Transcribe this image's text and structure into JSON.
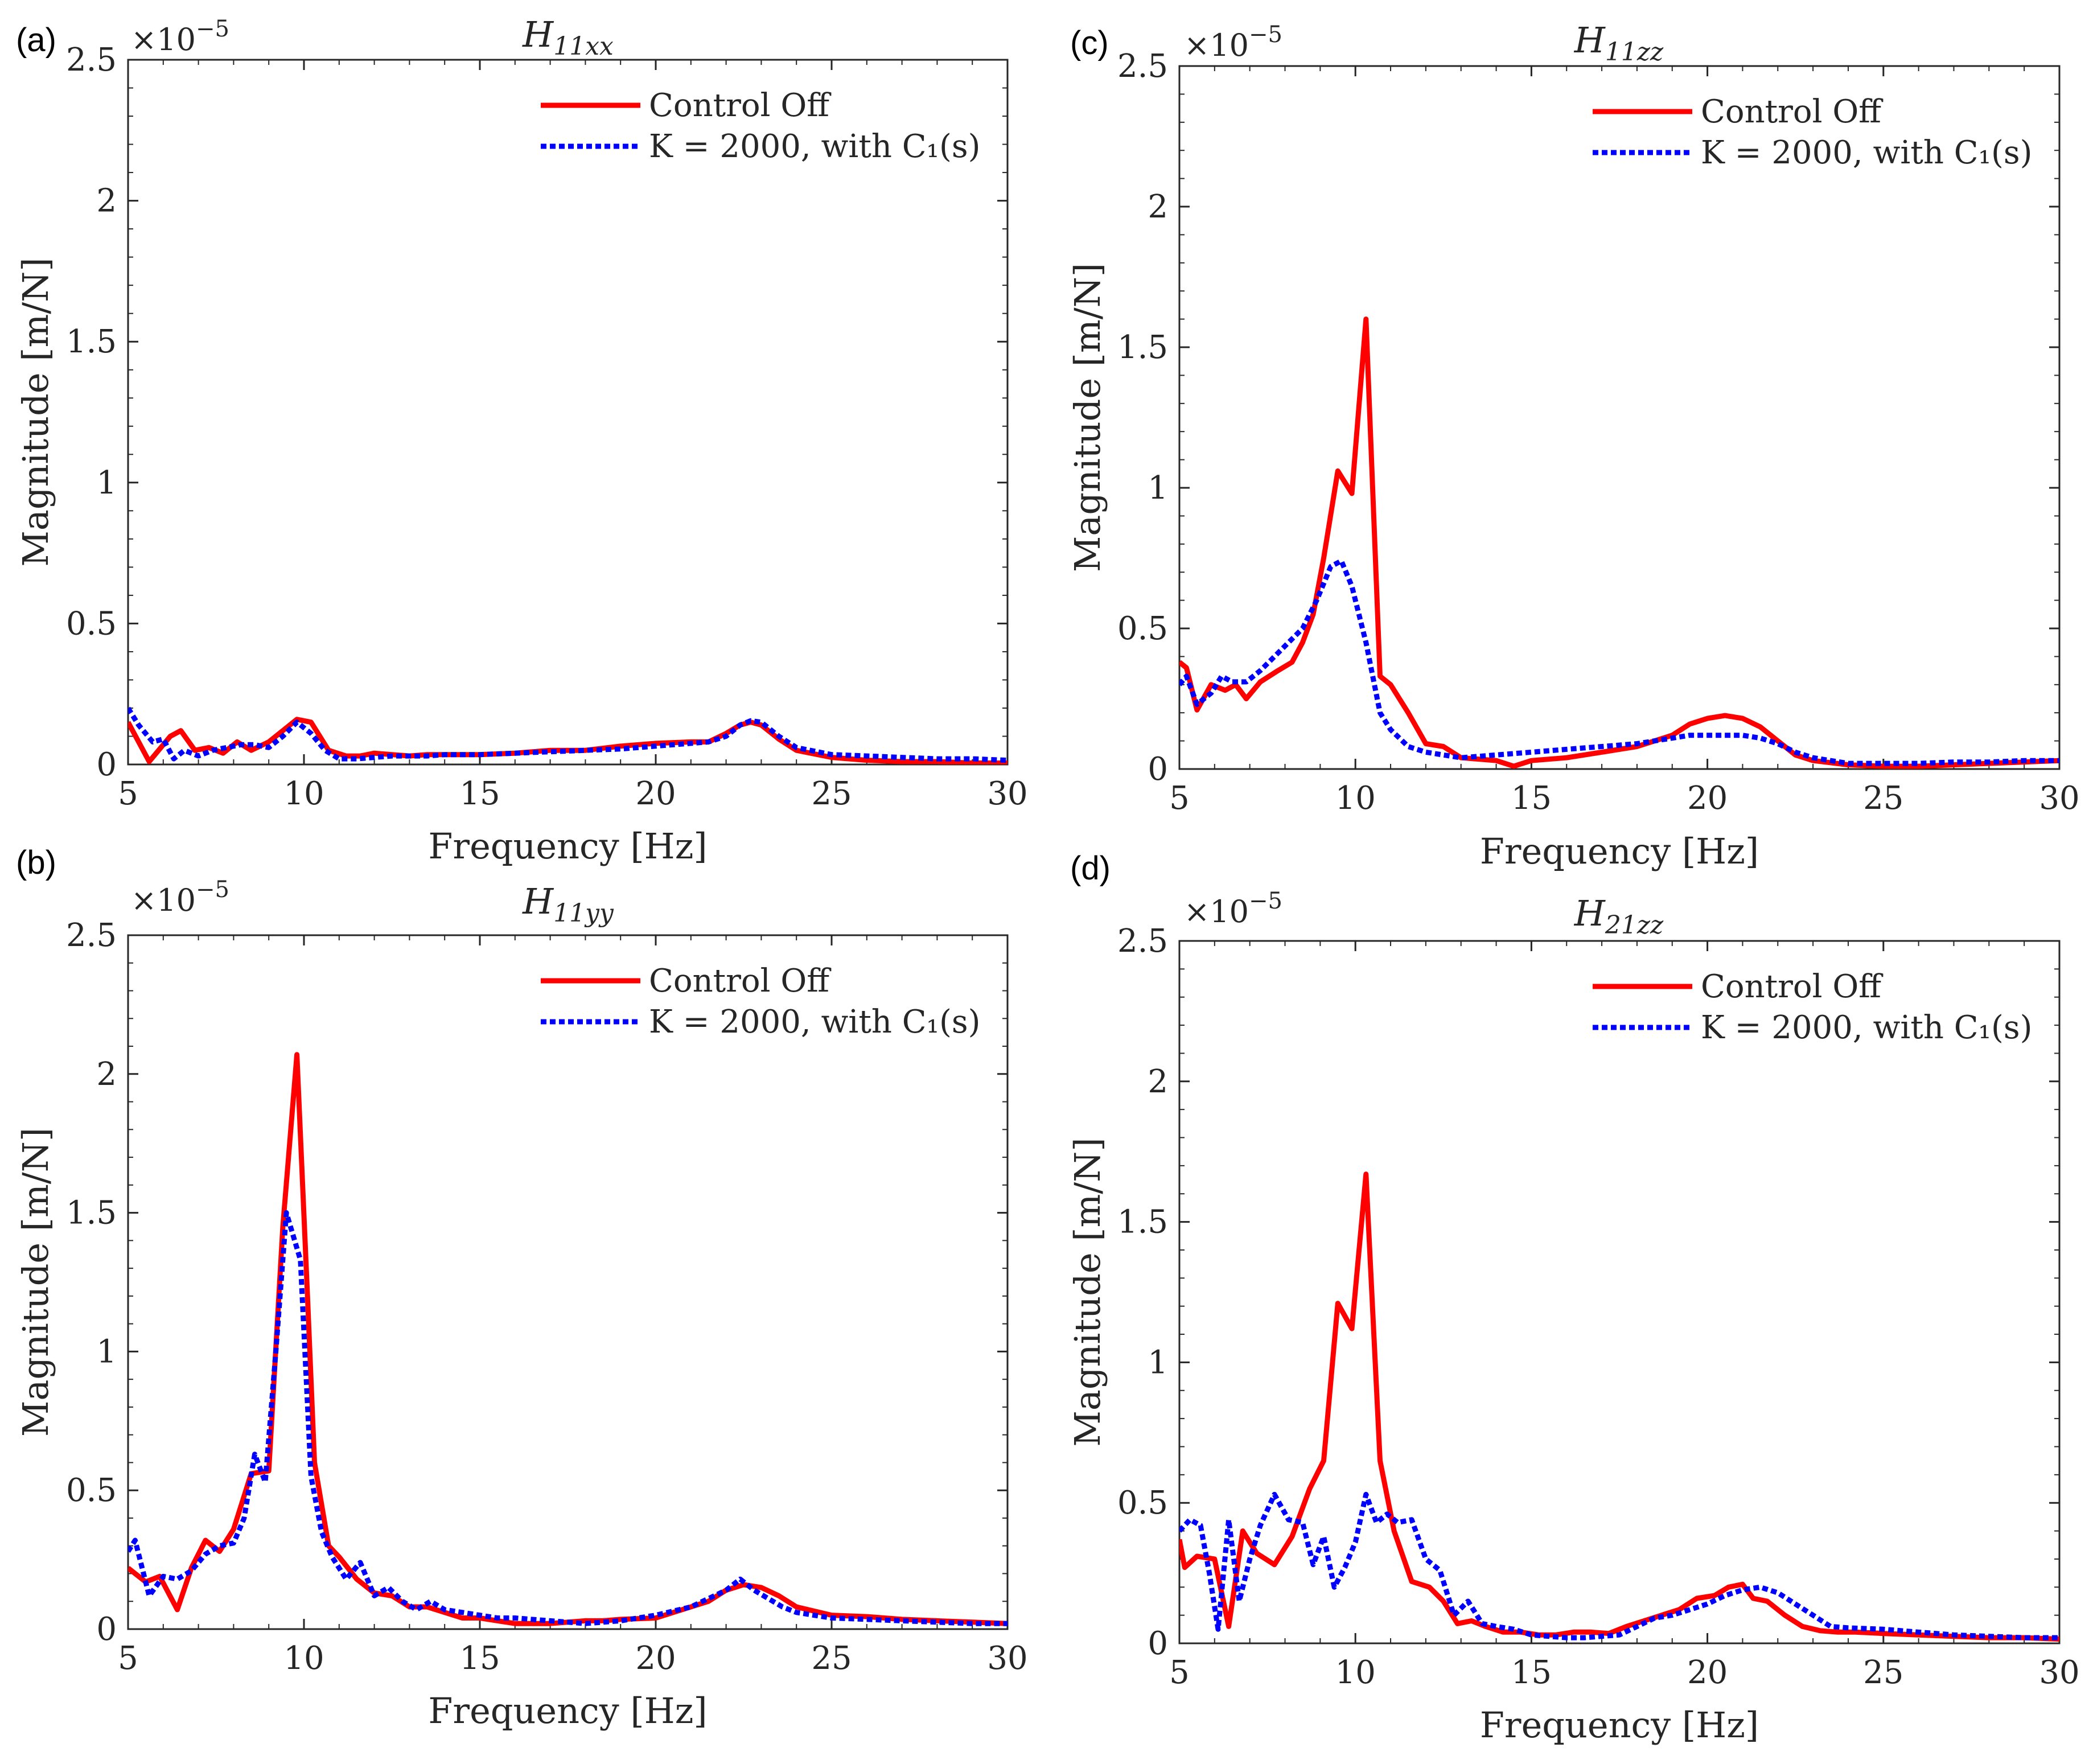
{
  "chart_data": [
    {
      "panel": "(a)",
      "type": "line",
      "title": "H_{11xx}",
      "title_main": "H",
      "title_sub": "11xx",
      "xlabel": "Frequency [Hz]",
      "ylabel": "Magnitude [m/N]",
      "y_multiplier": "×10",
      "y_multiplier_exp": "−5",
      "xlim": [
        5,
        30
      ],
      "ylim": [
        0,
        2.5
      ],
      "xticks": [
        "5",
        "10",
        "15",
        "20",
        "25",
        "30"
      ],
      "yticks": [
        "0",
        "0.5",
        "1",
        "1.5",
        "2",
        "2.5"
      ],
      "grid": false,
      "legend_position": "top-right",
      "series": [
        {
          "name": "Control Off",
          "color": "#ff0000",
          "dash": "solid",
          "x": [
            5,
            5.6,
            6.2,
            6.5,
            6.9,
            7.3,
            7.7,
            8.1,
            8.5,
            9.0,
            9.5,
            9.8,
            10.2,
            10.7,
            11.2,
            11.6,
            12.0,
            12.5,
            13.0,
            13.5,
            14.0,
            15.0,
            16.0,
            17.0,
            18.0,
            19.0,
            20.0,
            21.0,
            21.5,
            22.0,
            22.4,
            22.7,
            23.0,
            23.5,
            24.0,
            25.0,
            26.0,
            27.0,
            28.0,
            29.0,
            30.0
          ],
          "y": [
            0.15,
            0.01,
            0.1,
            0.12,
            0.05,
            0.06,
            0.04,
            0.08,
            0.05,
            0.08,
            0.13,
            0.16,
            0.15,
            0.05,
            0.03,
            0.03,
            0.04,
            0.035,
            0.03,
            0.035,
            0.035,
            0.035,
            0.04,
            0.05,
            0.05,
            0.065,
            0.075,
            0.08,
            0.08,
            0.11,
            0.14,
            0.15,
            0.14,
            0.09,
            0.05,
            0.025,
            0.015,
            0.01,
            0.01,
            0.005,
            0.005
          ]
        },
        {
          "name": "K = 2000, with C₁(s)",
          "color": "#0000ff",
          "dash": "dotted",
          "x": [
            5,
            5.3,
            5.7,
            6.0,
            6.3,
            6.6,
            7.0,
            7.4,
            7.8,
            8.2,
            8.6,
            9.0,
            9.4,
            9.8,
            10.2,
            10.6,
            11.0,
            11.5,
            12.0,
            12.5,
            13.0,
            13.5,
            14.0,
            15.0,
            16.0,
            17.0,
            18.0,
            19.0,
            20.0,
            21.0,
            21.5,
            22.0,
            22.4,
            22.7,
            23.0,
            23.5,
            24.0,
            25.0,
            26.0,
            27.0,
            28.0,
            29.0,
            30.0
          ],
          "y": [
            0.2,
            0.14,
            0.08,
            0.09,
            0.02,
            0.05,
            0.03,
            0.05,
            0.06,
            0.07,
            0.07,
            0.06,
            0.1,
            0.15,
            0.11,
            0.05,
            0.02,
            0.02,
            0.025,
            0.03,
            0.03,
            0.03,
            0.035,
            0.035,
            0.04,
            0.045,
            0.05,
            0.055,
            0.065,
            0.075,
            0.08,
            0.1,
            0.14,
            0.155,
            0.15,
            0.1,
            0.06,
            0.035,
            0.03,
            0.025,
            0.02,
            0.02,
            0.015
          ]
        }
      ]
    },
    {
      "panel": "(c)",
      "type": "line",
      "title": "H_{11zz}",
      "title_main": "H",
      "title_sub": "11zz",
      "xlabel": "Frequency [Hz]",
      "ylabel": "Magnitude [m/N]",
      "y_multiplier": "×10",
      "y_multiplier_exp": "−5",
      "xlim": [
        5,
        30
      ],
      "ylim": [
        0,
        2.5
      ],
      "xticks": [
        "5",
        "10",
        "15",
        "20",
        "25",
        "30"
      ],
      "yticks": [
        "0",
        "0.5",
        "1",
        "1.5",
        "2",
        "2.5"
      ],
      "grid": false,
      "legend_position": "top-right",
      "series": [
        {
          "name": "Control Off",
          "color": "#ff0000",
          "dash": "solid",
          "x": [
            5,
            5.2,
            5.5,
            5.9,
            6.3,
            6.6,
            6.9,
            7.3,
            7.8,
            8.2,
            8.5,
            8.8,
            9.1,
            9.5,
            9.9,
            10.3,
            10.7,
            11.0,
            11.5,
            12.0,
            12.5,
            13.0,
            14.0,
            14.5,
            15.0,
            16.0,
            17.0,
            18.0,
            19.0,
            19.5,
            20.0,
            20.5,
            21.0,
            21.5,
            22.0,
            22.5,
            23.0,
            24.0,
            25.0,
            26.0,
            27.0,
            28.0,
            29.0,
            30.0
          ],
          "y": [
            0.38,
            0.36,
            0.21,
            0.3,
            0.28,
            0.3,
            0.25,
            0.31,
            0.35,
            0.38,
            0.45,
            0.55,
            0.75,
            1.06,
            0.98,
            1.6,
            0.33,
            0.3,
            0.2,
            0.09,
            0.08,
            0.04,
            0.03,
            0.01,
            0.03,
            0.04,
            0.06,
            0.08,
            0.12,
            0.16,
            0.18,
            0.19,
            0.18,
            0.15,
            0.1,
            0.05,
            0.03,
            0.015,
            0.01,
            0.01,
            0.015,
            0.02,
            0.025,
            0.03
          ]
        },
        {
          "name": "K = 2000, with C₁(s)",
          "color": "#0000ff",
          "dash": "dotted",
          "x": [
            5,
            5.2,
            5.5,
            5.9,
            6.2,
            6.5,
            6.9,
            7.3,
            7.7,
            8.1,
            8.5,
            8.9,
            9.3,
            9.6,
            9.9,
            10.3,
            10.7,
            11.0,
            11.5,
            12.0,
            12.5,
            13.0,
            14.0,
            15.0,
            16.0,
            17.0,
            18.0,
            19.0,
            19.5,
            20.0,
            20.5,
            21.0,
            21.5,
            22.0,
            22.5,
            23.0,
            24.0,
            25.0,
            26.0,
            27.0,
            28.0,
            29.0,
            30.0
          ],
          "y": [
            0.3,
            0.33,
            0.23,
            0.27,
            0.33,
            0.31,
            0.31,
            0.35,
            0.4,
            0.45,
            0.5,
            0.6,
            0.72,
            0.74,
            0.65,
            0.45,
            0.2,
            0.14,
            0.08,
            0.06,
            0.05,
            0.04,
            0.05,
            0.06,
            0.07,
            0.08,
            0.09,
            0.11,
            0.12,
            0.12,
            0.12,
            0.12,
            0.11,
            0.09,
            0.06,
            0.04,
            0.02,
            0.02,
            0.02,
            0.025,
            0.025,
            0.03,
            0.03
          ]
        }
      ]
    },
    {
      "panel": "(b)",
      "type": "line",
      "title": "H_{11yy}",
      "title_main": "H",
      "title_sub": "11yy",
      "xlabel": "Frequency [Hz]",
      "ylabel": "Magnitude [m/N]",
      "y_multiplier": "×10",
      "y_multiplier_exp": "−5",
      "xlim": [
        5,
        30
      ],
      "ylim": [
        0,
        2.5
      ],
      "xticks": [
        "5",
        "10",
        "15",
        "20",
        "25",
        "30"
      ],
      "yticks": [
        "0",
        "0.5",
        "1",
        "1.5",
        "2",
        "2.5"
      ],
      "grid": false,
      "legend_position": "top-right",
      "series": [
        {
          "name": "Control Off",
          "color": "#ff0000",
          "dash": "solid",
          "x": [
            5,
            5.5,
            5.9,
            6.4,
            6.8,
            7.2,
            7.6,
            8.0,
            8.5,
            9.0,
            9.4,
            9.8,
            10.1,
            10.3,
            10.7,
            11.0,
            11.5,
            12.0,
            12.5,
            13.0,
            13.5,
            14.0,
            14.5,
            15.0,
            15.5,
            16.0,
            17.0,
            17.5,
            18.0,
            18.5,
            19.0,
            20.0,
            21.0,
            21.5,
            22.0,
            22.5,
            23.0,
            23.5,
            24.0,
            25.0,
            26.0,
            27.0,
            28.0,
            29.0,
            30.0
          ],
          "y": [
            0.22,
            0.17,
            0.19,
            0.07,
            0.22,
            0.32,
            0.28,
            0.36,
            0.56,
            0.57,
            1.45,
            2.07,
            1.2,
            0.6,
            0.3,
            0.26,
            0.18,
            0.13,
            0.12,
            0.08,
            0.08,
            0.06,
            0.04,
            0.04,
            0.03,
            0.02,
            0.02,
            0.025,
            0.03,
            0.03,
            0.035,
            0.04,
            0.08,
            0.1,
            0.14,
            0.16,
            0.15,
            0.12,
            0.08,
            0.05,
            0.045,
            0.035,
            0.03,
            0.025,
            0.02
          ]
        },
        {
          "name": "K = 2000, with C₁(s)",
          "color": "#0000ff",
          "dash": "dotted",
          "x": [
            5,
            5.2,
            5.6,
            6.0,
            6.4,
            6.8,
            7.2,
            7.6,
            8.0,
            8.3,
            8.6,
            8.9,
            9.2,
            9.5,
            9.9,
            10.2,
            10.5,
            10.8,
            11.2,
            11.6,
            12.0,
            12.4,
            12.8,
            13.2,
            13.6,
            14.0,
            14.5,
            15.0,
            15.5,
            16.0,
            17.0,
            18.0,
            19.0,
            20.0,
            21.0,
            21.5,
            22.0,
            22.4,
            22.8,
            23.2,
            23.6,
            24.0,
            25.0,
            26.0,
            27.0,
            28.0,
            29.0,
            30.0
          ],
          "y": [
            0.28,
            0.32,
            0.12,
            0.19,
            0.18,
            0.21,
            0.27,
            0.3,
            0.31,
            0.4,
            0.63,
            0.53,
            1.0,
            1.5,
            1.33,
            0.55,
            0.35,
            0.26,
            0.18,
            0.24,
            0.12,
            0.15,
            0.1,
            0.07,
            0.1,
            0.07,
            0.06,
            0.05,
            0.04,
            0.04,
            0.03,
            0.02,
            0.03,
            0.05,
            0.08,
            0.11,
            0.14,
            0.18,
            0.14,
            0.11,
            0.08,
            0.06,
            0.04,
            0.035,
            0.03,
            0.025,
            0.02,
            0.02
          ]
        }
      ]
    },
    {
      "panel": "(d)",
      "type": "line",
      "title": "H_{21zz}",
      "title_main": "H",
      "title_sub": "21zz",
      "xlabel": "Frequency [Hz]",
      "ylabel": "Magnitude [m/N]",
      "y_multiplier": "×10",
      "y_multiplier_exp": "−5",
      "xlim": [
        5,
        30
      ],
      "ylim": [
        0,
        2.5
      ],
      "xticks": [
        "5",
        "10",
        "15",
        "20",
        "25",
        "30"
      ],
      "yticks": [
        "0",
        "0.5",
        "1",
        "1.5",
        "2",
        "2.5"
      ],
      "grid": false,
      "legend_position": "top-right",
      "series": [
        {
          "name": "Control Off",
          "color": "#ff0000",
          "dash": "solid",
          "x": [
            5,
            5.15,
            5.5,
            6.0,
            6.4,
            6.8,
            7.2,
            7.7,
            8.2,
            8.7,
            9.1,
            9.5,
            9.9,
            10.3,
            10.7,
            11.1,
            11.6,
            12.1,
            12.5,
            12.9,
            13.3,
            13.7,
            14.2,
            14.7,
            15.2,
            15.7,
            16.2,
            16.7,
            17.2,
            17.7,
            18.2,
            18.7,
            19.2,
            19.7,
            20.2,
            20.6,
            21.0,
            21.3,
            21.7,
            22.2,
            22.7,
            23.2,
            23.7,
            24.2,
            25.0,
            26.0,
            27.0,
            28.0,
            29.0,
            30.0
          ],
          "y": [
            0.37,
            0.27,
            0.31,
            0.3,
            0.06,
            0.4,
            0.32,
            0.28,
            0.38,
            0.55,
            0.65,
            1.21,
            1.12,
            1.67,
            0.65,
            0.4,
            0.22,
            0.2,
            0.15,
            0.07,
            0.08,
            0.06,
            0.04,
            0.04,
            0.03,
            0.03,
            0.04,
            0.04,
            0.035,
            0.06,
            0.08,
            0.1,
            0.12,
            0.16,
            0.17,
            0.2,
            0.21,
            0.16,
            0.15,
            0.1,
            0.06,
            0.045,
            0.04,
            0.04,
            0.035,
            0.03,
            0.025,
            0.02,
            0.02,
            0.015
          ]
        },
        {
          "name": "K = 2000, with C₁(s)",
          "color": "#0000ff",
          "dash": "dotted",
          "x": [
            5,
            5.3,
            5.6,
            5.85,
            6.1,
            6.4,
            6.7,
            7.0,
            7.3,
            7.7,
            8.1,
            8.5,
            8.8,
            9.1,
            9.4,
            9.7,
            10.0,
            10.3,
            10.6,
            10.9,
            11.2,
            11.6,
            12.0,
            12.4,
            12.8,
            13.2,
            13.6,
            14.0,
            14.5,
            15.0,
            15.5,
            16.0,
            16.5,
            17.0,
            17.5,
            18.0,
            18.5,
            19.0,
            19.5,
            20.0,
            20.5,
            21.0,
            21.5,
            22.0,
            22.5,
            23.0,
            23.5,
            24.0,
            25.0,
            26.0,
            27.0,
            28.0,
            29.0,
            30.0
          ],
          "y": [
            0.4,
            0.44,
            0.42,
            0.25,
            0.05,
            0.44,
            0.15,
            0.3,
            0.42,
            0.53,
            0.44,
            0.43,
            0.28,
            0.38,
            0.2,
            0.27,
            0.36,
            0.53,
            0.43,
            0.46,
            0.43,
            0.44,
            0.3,
            0.26,
            0.1,
            0.15,
            0.07,
            0.06,
            0.05,
            0.03,
            0.025,
            0.02,
            0.02,
            0.025,
            0.03,
            0.06,
            0.09,
            0.1,
            0.12,
            0.14,
            0.17,
            0.19,
            0.2,
            0.18,
            0.14,
            0.1,
            0.06,
            0.055,
            0.05,
            0.04,
            0.03,
            0.025,
            0.02,
            0.02
          ]
        }
      ]
    }
  ]
}
